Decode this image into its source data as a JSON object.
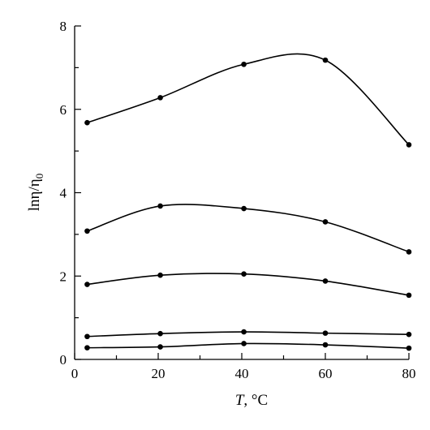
{
  "chart_data": {
    "type": "line",
    "xlabel": "T, °C",
    "ylabel": "lnη/η0",
    "xlim": [
      0,
      80
    ],
    "ylim": [
      0,
      8
    ],
    "x_ticks": [
      0,
      20,
      40,
      60,
      80
    ],
    "x_tick_labels": [
      "0",
      "20",
      "40",
      "60",
      "80"
    ],
    "y_ticks": [
      0,
      2,
      4,
      6,
      8
    ],
    "y_tick_labels": [
      "0",
      "2",
      "4",
      "6",
      "8"
    ],
    "grid": false,
    "legend": "none",
    "series": [
      {
        "marker": "circle",
        "x": [
          3,
          20.5,
          40.5,
          60,
          80
        ],
        "y": [
          5.68,
          6.28,
          7.08,
          7.18,
          5.15
        ]
      },
      {
        "marker": "circle",
        "x": [
          3,
          20.5,
          40.5,
          60,
          80
        ],
        "y": [
          3.08,
          3.68,
          3.62,
          3.3,
          2.58
        ]
      },
      {
        "marker": "circle",
        "x": [
          3,
          20.5,
          40.5,
          60,
          80
        ],
        "y": [
          1.8,
          2.02,
          2.05,
          1.88,
          1.54
        ]
      },
      {
        "marker": "circle",
        "x": [
          3,
          20.5,
          40.5,
          60,
          80
        ],
        "y": [
          0.55,
          0.62,
          0.66,
          0.63,
          0.6
        ]
      },
      {
        "marker": "circle",
        "x": [
          3,
          20.5,
          40.5,
          60,
          80
        ],
        "y": [
          0.28,
          0.3,
          0.38,
          0.35,
          0.27
        ]
      }
    ]
  }
}
